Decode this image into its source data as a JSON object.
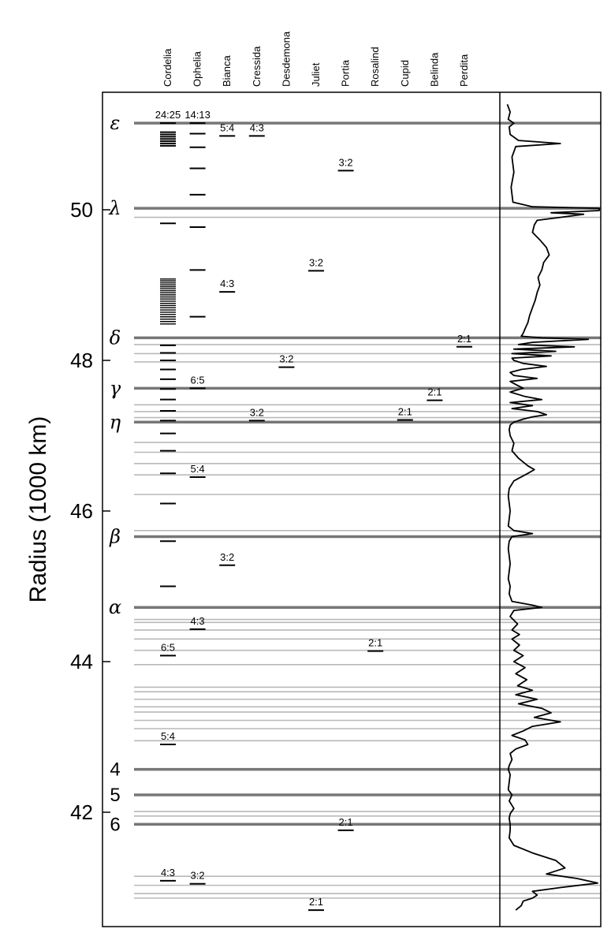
{
  "chart_data": {
    "type": "scatter",
    "ylabel": "Radius (1000 km)",
    "ylim": [
      40.6,
      51.6
    ],
    "yticks": [
      42,
      44,
      46,
      48,
      50
    ],
    "moons": [
      "Cordelia",
      "Ophelia",
      "Bianca",
      "Cressida",
      "Desdemona",
      "Juliet",
      "Portia",
      "Rosalind",
      "Cupid",
      "Belinda",
      "Perdita"
    ],
    "major_rings": [
      {
        "label": "ε",
        "r": 51.15,
        "style": "greek"
      },
      {
        "label": "λ",
        "r": 50.02,
        "style": "greek"
      },
      {
        "label": "δ",
        "r": 48.3,
        "style": "greek"
      },
      {
        "label": "γ",
        "r": 47.63,
        "style": "greek"
      },
      {
        "label": "η",
        "r": 47.18,
        "style": "greek"
      },
      {
        "label": "β",
        "r": 45.66,
        "style": "greek"
      },
      {
        "label": "α",
        "r": 44.72,
        "style": "greek"
      },
      {
        "label": "4",
        "r": 42.57,
        "style": "num"
      },
      {
        "label": "5",
        "r": 42.23,
        "style": "num"
      },
      {
        "label": "6",
        "r": 41.84,
        "style": "num"
      }
    ],
    "minor_rings": [
      49.9,
      48.21,
      48.09,
      47.98,
      47.41,
      47.32,
      47.24,
      46.91,
      46.78,
      46.63,
      46.48,
      46.22,
      45.74,
      44.56,
      44.52,
      44.42,
      44.3,
      44.15,
      43.96,
      43.66,
      43.6,
      43.5,
      43.4,
      43.33,
      43.22,
      43.11,
      42.95,
      42.01,
      41.95,
      41.15,
      41.03,
      40.92,
      40.86
    ],
    "resonances": [
      {
        "moon": "Cordelia",
        "label": "24:25",
        "r": 51.15
      },
      {
        "moon": "Ophelia",
        "label": "14:13",
        "r": 51.15
      },
      {
        "moon": "Bianca",
        "label": "5:4",
        "r": 50.98
      },
      {
        "moon": "Cressida",
        "label": "4:3",
        "r": 50.98
      },
      {
        "moon": "Portia",
        "label": "3:2",
        "r": 50.52
      },
      {
        "moon": "Juliet",
        "label": "3:2",
        "r": 49.19
      },
      {
        "moon": "Bianca",
        "label": "4:3",
        "r": 48.91
      },
      {
        "moon": "Perdita",
        "label": "2:1",
        "r": 48.18
      },
      {
        "moon": "Desdemona",
        "label": "3:2",
        "r": 47.91
      },
      {
        "moon": "Ophelia",
        "label": "6:5",
        "r": 47.63
      },
      {
        "moon": "Belinda",
        "label": "2:1",
        "r": 47.47
      },
      {
        "moon": "Cressida",
        "label": "3:2",
        "r": 47.2
      },
      {
        "moon": "Cupid",
        "label": "2:1",
        "r": 47.21
      },
      {
        "moon": "Ophelia",
        "label": "5:4",
        "r": 46.45
      },
      {
        "moon": "Bianca",
        "label": "3:2",
        "r": 45.28
      },
      {
        "moon": "Ophelia",
        "label": "4:3",
        "r": 44.43
      },
      {
        "moon": "Rosalind",
        "label": "2:1",
        "r": 44.14
      },
      {
        "moon": "Cordelia",
        "label": "6:5",
        "r": 44.08
      },
      {
        "moon": "Cordelia",
        "label": "5:4",
        "r": 42.9
      },
      {
        "moon": "Portia",
        "label": "2:1",
        "r": 41.76
      },
      {
        "moon": "Cordelia",
        "label": "4:3",
        "r": 41.09
      },
      {
        "moon": "Ophelia",
        "label": "3:2",
        "r": 41.05
      },
      {
        "moon": "Juliet",
        "label": "2:1",
        "r": 40.7
      }
    ],
    "unlabeled_marks": {
      "Cordelia": [
        51.03,
        51.0,
        50.97,
        50.94,
        50.91,
        50.88,
        50.85,
        49.82,
        48.2,
        48.1,
        48.0,
        47.88,
        47.75,
        47.62,
        47.48,
        47.33,
        47.2,
        47.03,
        46.8,
        46.5,
        46.1,
        45.6,
        45.0
      ],
      "Cordelia_dense": [
        49.08,
        48.48
      ],
      "Ophelia": [
        51.01,
        50.83,
        50.55,
        50.2,
        49.77,
        49.2,
        48.58
      ]
    },
    "optical_depth_profile": {
      "r": [
        51.4,
        51.3,
        51.2,
        51.15,
        51.1,
        51.0,
        50.92,
        50.88,
        50.84,
        50.7,
        50.5,
        50.3,
        50.1,
        50.04,
        50.02,
        49.99,
        49.96,
        49.94,
        49.9,
        49.86,
        49.8,
        49.7,
        49.6,
        49.5,
        49.4,
        49.3,
        49.2,
        49.1,
        49.0,
        48.9,
        48.8,
        48.7,
        48.6,
        48.5,
        48.42,
        48.36,
        48.32,
        48.3,
        48.28,
        48.24,
        48.21,
        48.18,
        48.15,
        48.12,
        48.09,
        48.06,
        48.03,
        48.0,
        47.96,
        47.92,
        47.88,
        47.84,
        47.8,
        47.76,
        47.72,
        47.68,
        47.63,
        47.58,
        47.52,
        47.48,
        47.44,
        47.4,
        47.36,
        47.32,
        47.28,
        47.25,
        47.22,
        47.18,
        47.14,
        47.08,
        47.0,
        46.9,
        46.8,
        46.7,
        46.6,
        46.55,
        46.5,
        46.4,
        46.3,
        46.2,
        46.1,
        46.0,
        45.9,
        45.8,
        45.74,
        45.7,
        45.66,
        45.6,
        45.5,
        45.4,
        45.3,
        45.2,
        45.1,
        45.0,
        44.9,
        44.8,
        44.75,
        44.72,
        44.68,
        44.6,
        44.5,
        44.42,
        44.36,
        44.3,
        44.22,
        44.15,
        44.08,
        44.0,
        43.92,
        43.84,
        43.76,
        43.68,
        43.62,
        43.56,
        43.5,
        43.44,
        43.38,
        43.32,
        43.26,
        43.2,
        43.14,
        43.08,
        43.02,
        42.96,
        42.9,
        42.84,
        42.78,
        42.7,
        42.62,
        42.57,
        42.5,
        42.4,
        42.3,
        42.23,
        42.15,
        42.05,
        41.98,
        41.92,
        41.84,
        41.76,
        41.66,
        41.56,
        41.46,
        41.36,
        41.26,
        41.18,
        41.12,
        41.06,
        41.0,
        40.95,
        40.9,
        40.86,
        40.82,
        40.76,
        40.7,
        40.64,
        40.6
      ],
      "tau": [
        0.03,
        0.06,
        0.04,
        0.1,
        0.05,
        0.06,
        0.15,
        0.6,
        0.12,
        0.08,
        0.1,
        0.07,
        0.09,
        0.3,
        1.3,
        1.1,
        0.5,
        0.85,
        0.6,
        0.35,
        0.32,
        0.3,
        0.38,
        0.45,
        0.48,
        0.42,
        0.4,
        0.36,
        0.38,
        0.35,
        0.33,
        0.3,
        0.27,
        0.25,
        0.22,
        0.2,
        0.18,
        0.4,
        0.9,
        0.3,
        0.15,
        0.75,
        0.1,
        0.55,
        0.08,
        0.5,
        0.08,
        0.1,
        0.2,
        0.45,
        0.18,
        0.06,
        0.1,
        0.35,
        0.06,
        0.12,
        0.2,
        0.06,
        0.22,
        0.4,
        0.06,
        0.3,
        0.08,
        0.35,
        0.45,
        0.3,
        0.2,
        0.1,
        0.06,
        0.05,
        0.06,
        0.1,
        0.08,
        0.15,
        0.25,
        0.32,
        0.25,
        0.1,
        0.05,
        0.04,
        0.05,
        0.06,
        0.05,
        0.04,
        0.1,
        0.3,
        0.08,
        0.05,
        0.04,
        0.05,
        0.06,
        0.05,
        0.04,
        0.06,
        0.05,
        0.08,
        0.3,
        0.4,
        0.1,
        0.06,
        0.14,
        0.08,
        0.16,
        0.08,
        0.16,
        0.1,
        0.2,
        0.1,
        0.22,
        0.12,
        0.24,
        0.14,
        0.3,
        0.12,
        0.35,
        0.15,
        0.4,
        0.5,
        0.32,
        0.6,
        0.3,
        0.2,
        0.08,
        0.22,
        0.25,
        0.12,
        0.06,
        0.08,
        0.05,
        0.04,
        0.06,
        0.05,
        0.04,
        0.08,
        0.05,
        0.1,
        0.06,
        0.05,
        0.06,
        0.06,
        0.05,
        0.1,
        0.3,
        0.55,
        0.65,
        0.45,
        0.78,
        1.0,
        0.6,
        0.3,
        0.35,
        0.3,
        0.2,
        0.18,
        0.12
      ]
    }
  }
}
